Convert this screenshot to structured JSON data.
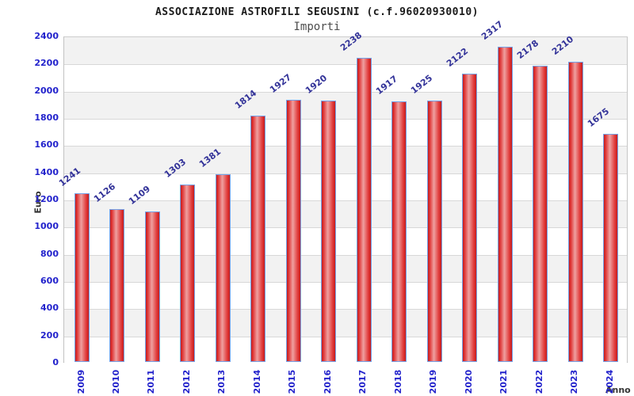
{
  "header": {
    "title": "ASSOCIAZIONE ASTROFILI SEGUSINI (c.f.96020930010)",
    "subtitle": "Importi"
  },
  "chart_data": {
    "type": "bar",
    "title": "ASSOCIAZIONE ASTROFILI SEGUSINI (c.f.96020930010)",
    "subtitle": "Importi",
    "xlabel": "Anno",
    "ylabel": "Euro",
    "categories": [
      "2009",
      "2010",
      "2011",
      "2012",
      "2013",
      "2014",
      "2015",
      "2016",
      "2017",
      "2018",
      "2019",
      "2020",
      "2021",
      "2022",
      "2023",
      "2024"
    ],
    "values": [
      1241,
      1126,
      1109,
      1303,
      1381,
      1814,
      1927,
      1920,
      2238,
      1917,
      1925,
      2122,
      2317,
      2178,
      2210,
      1675
    ],
    "ylim": [
      0,
      2400
    ],
    "ytick_step": 200,
    "yticks": [
      0,
      200,
      400,
      600,
      800,
      1000,
      1200,
      1400,
      1600,
      1800,
      2000,
      2200,
      2400
    ],
    "grid": true,
    "legend": "none",
    "colors": {
      "bar_fill_dark": "#c41d1d",
      "bar_fill_light": "#efa0a0",
      "bar_border": "#74a2e8",
      "tick_label": "#2323cc",
      "value_label": "#333399",
      "band_gray": "#f2f2f2",
      "gridline": "#d8d8d8",
      "axis_title": "#333333"
    }
  }
}
